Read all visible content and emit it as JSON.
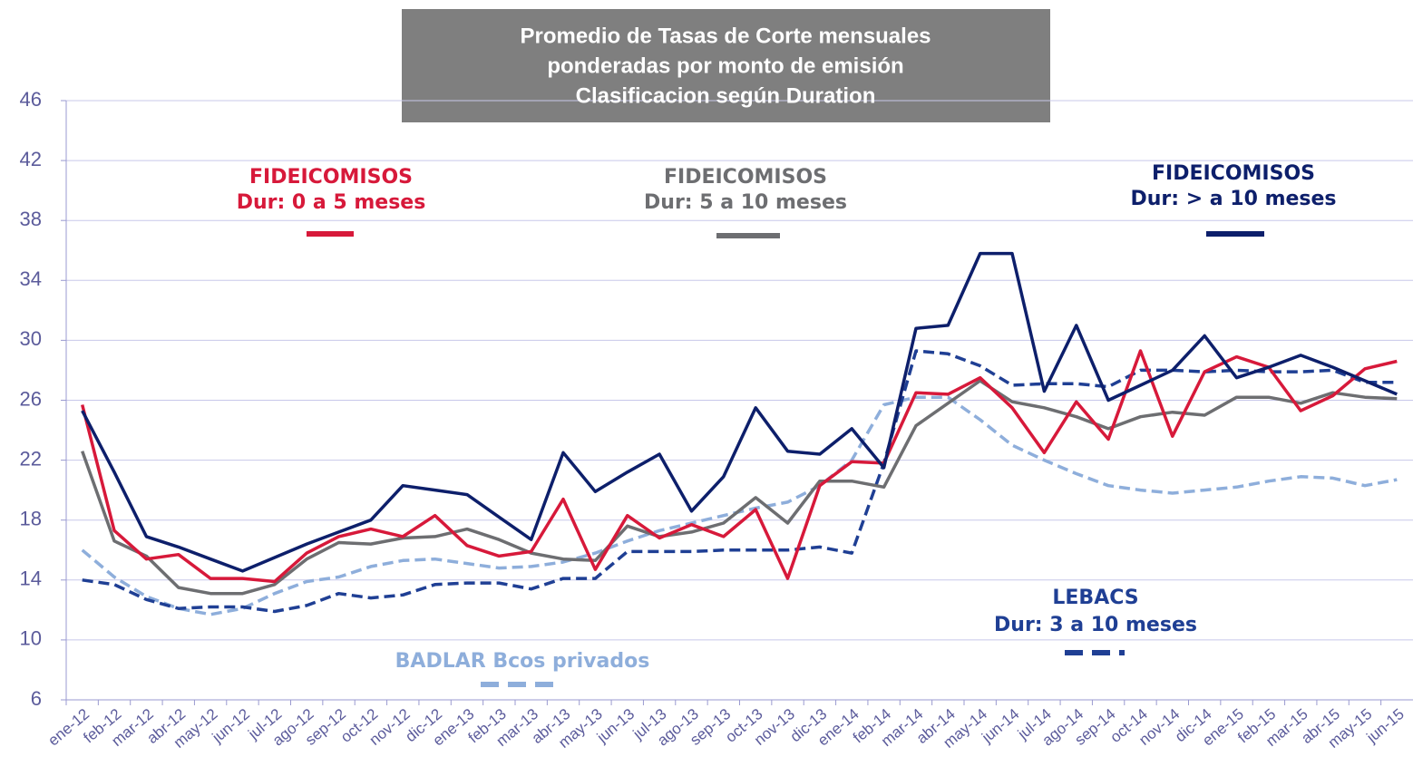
{
  "chart_data": {
    "type": "line",
    "title": [
      "Promedio de Tasas de Corte mensuales",
      "ponderadas por monto de emisión",
      "Clasificacion según Duration"
    ],
    "categories": [
      "ene-12",
      "feb-12",
      "mar-12",
      "abr-12",
      "may-12",
      "jun-12",
      "jul-12",
      "ago-12",
      "sep-12",
      "oct-12",
      "nov-12",
      "dic-12",
      "ene-13",
      "feb-13",
      "mar-13",
      "abr-13",
      "may-13",
      "jun-13",
      "jul-13",
      "ago-13",
      "sep-13",
      "oct-13",
      "nov-13",
      "dic-13",
      "ene-14",
      "feb-14",
      "mar-14",
      "abr-14",
      "may-14",
      "jun-14",
      "jul-14",
      "ago-14",
      "sep-14",
      "oct-14",
      "nov-14",
      "dic-14",
      "ene-15",
      "feb-15",
      "mar-15",
      "abr-15",
      "may-15",
      "jun-15"
    ],
    "ylim": [
      6,
      46
    ],
    "yticks": [
      6,
      10,
      14,
      18,
      22,
      26,
      30,
      34,
      38,
      42,
      46
    ],
    "grid": true,
    "series": [
      {
        "name": "FIDEICOMISOS",
        "duration": "Dur: 0 a 5 meses",
        "color": "#d7193a",
        "dashed": false,
        "values": [
          25.7,
          17.3,
          15.4,
          15.7,
          14.1,
          14.1,
          13.9,
          15.8,
          16.9,
          17.4,
          16.9,
          18.3,
          16.3,
          15.6,
          15.9,
          19.4,
          14.7,
          18.3,
          16.8,
          17.7,
          16.9,
          18.7,
          14.1,
          20.3,
          21.9,
          21.8,
          26.5,
          26.4,
          27.5,
          25.5,
          22.5,
          25.9,
          23.4,
          29.3,
          23.6,
          27.9,
          28.9,
          28.2,
          25.3,
          26.3,
          28.1,
          28.6
        ]
      },
      {
        "name": "FIDEICOMISOS",
        "duration": "Dur: 5 a 10 meses",
        "color": "#6d6e71",
        "dashed": false,
        "values": [
          22.6,
          16.6,
          15.6,
          13.5,
          13.1,
          13.1,
          13.7,
          15.4,
          16.5,
          16.4,
          16.8,
          16.9,
          17.4,
          16.7,
          15.8,
          15.4,
          15.3,
          17.6,
          16.9,
          17.2,
          17.8,
          19.5,
          17.8,
          20.6,
          20.6,
          20.2,
          24.3,
          25.8,
          27.3,
          25.9,
          25.5,
          24.9,
          24.1,
          24.9,
          25.2,
          25.0,
          26.2,
          26.2,
          25.8,
          26.5,
          26.2,
          26.1
        ]
      },
      {
        "name": "FIDEICOMISOS",
        "duration": "Dur: > a 10 meses",
        "color": "#0d1f6b",
        "dashed": false,
        "values": [
          25.3,
          21.2,
          16.9,
          16.2,
          15.4,
          14.6,
          15.5,
          16.4,
          17.2,
          18.0,
          20.3,
          20.0,
          19.7,
          18.2,
          16.7,
          22.5,
          19.9,
          21.2,
          22.4,
          18.6,
          20.9,
          25.5,
          22.6,
          22.4,
          24.1,
          21.5,
          30.8,
          31.0,
          35.8,
          35.8,
          26.6,
          31.0,
          26.0,
          27.0,
          28.0,
          30.3,
          27.5,
          28.2,
          29.0,
          28.2,
          27.3,
          26.4
        ]
      },
      {
        "name": "LEBACS",
        "duration": "Dur: 3 a 10 meses",
        "color": "#1f3f94",
        "dashed": true,
        "values": [
          14.0,
          13.7,
          12.7,
          12.1,
          12.2,
          12.2,
          11.9,
          12.3,
          13.1,
          12.8,
          13.0,
          13.7,
          13.8,
          13.8,
          13.4,
          14.1,
          14.1,
          15.9,
          15.9,
          15.9,
          16.0,
          16.0,
          16.0,
          16.2,
          15.8,
          21.8,
          29.3,
          29.1,
          28.3,
          27.0,
          27.1,
          27.1,
          26.9,
          28.0,
          28.0,
          27.9,
          28.0,
          27.9,
          27.9,
          28.0,
          27.2,
          27.2
        ]
      },
      {
        "name": "BADLAR Bcos privados",
        "color": "#8eaedb",
        "dashed": true,
        "values": [
          16.0,
          14.2,
          12.9,
          12.1,
          11.7,
          12.1,
          13.1,
          13.9,
          14.2,
          14.9,
          15.3,
          15.4,
          15.1,
          14.8,
          14.9,
          15.2,
          15.8,
          16.6,
          17.3,
          17.8,
          18.3,
          18.8,
          19.2,
          20.3,
          22.0,
          25.7,
          26.2,
          26.2,
          24.7,
          23.0,
          22.0,
          21.1,
          20.3,
          20.0,
          19.8,
          20.0,
          20.2,
          20.6,
          20.9,
          20.8,
          20.3,
          20.7
        ]
      }
    ]
  }
}
